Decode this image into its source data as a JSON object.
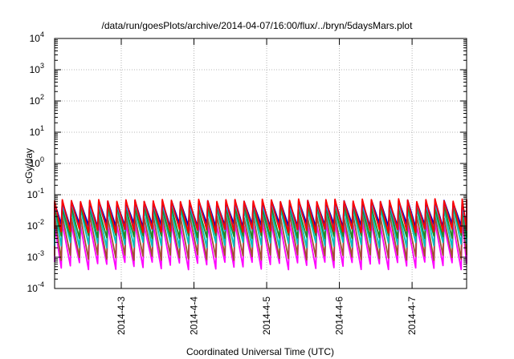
{
  "chart_data": {
    "type": "line",
    "title": "/data/run/goesPlots/archive/2014-04-07/16:00/flux/../bryn/5daysMars.plot",
    "xlabel": "Coordinated Universal Time (UTC)",
    "ylabel": "cGy/day",
    "y_scale": "log",
    "ylim": [
      0.0001,
      10000
    ],
    "xlim": [
      "2014-04-02 02:00",
      "2014-04-07 18:00"
    ],
    "x_ticks": [
      "2014-4-3",
      "2014-4-4",
      "2014-4-5",
      "2014-4-6",
      "2014-4-7"
    ],
    "y_ticks": [
      {
        "value": 0.0001,
        "base": "10",
        "exp": "-4"
      },
      {
        "value": 0.001,
        "base": "10",
        "exp": "-3"
      },
      {
        "value": 0.01,
        "base": "10",
        "exp": "-2"
      },
      {
        "value": 0.1,
        "base": "10",
        "exp": "-1"
      },
      {
        "value": 1,
        "base": "10",
        "exp": "0"
      },
      {
        "value": 10,
        "base": "10",
        "exp": "1"
      },
      {
        "value": 100,
        "base": "10",
        "exp": "2"
      },
      {
        "value": 1000,
        "base": "10",
        "exp": "3"
      },
      {
        "value": 10000,
        "base": "10",
        "exp": "4"
      }
    ],
    "grid": true,
    "x_tick_label_rotation": "vertical",
    "oscillation_period_hours": 3,
    "series": [
      {
        "color": "#ff00ff",
        "peak_values": [
          0.01,
          0.014
        ],
        "trough_values": [
          0.0004,
          0.0007
        ]
      },
      {
        "color": "#a0522d",
        "peak_values": [
          0.018,
          0.025
        ],
        "trough_values": [
          0.0008,
          0.0012
        ]
      },
      {
        "color": "#00c0c0",
        "peak_values": [
          0.03,
          0.04
        ],
        "trough_values": [
          0.002,
          0.003
        ]
      },
      {
        "color": "#228b22",
        "peak_values": [
          0.035,
          0.05
        ],
        "trough_values": [
          0.004,
          0.005
        ]
      },
      {
        "color": "#1e90ff",
        "peak_values": [
          0.045,
          0.06
        ],
        "trough_values": [
          0.007,
          0.009
        ]
      },
      {
        "color": "#0000cd",
        "peak_values": [
          0.055,
          0.07
        ],
        "trough_values": [
          0.009,
          0.012
        ]
      },
      {
        "color": "#ff0000",
        "peak_values": [
          0.06,
          0.075
        ],
        "trough_values": [
          0.006,
          0.008
        ]
      }
    ]
  }
}
